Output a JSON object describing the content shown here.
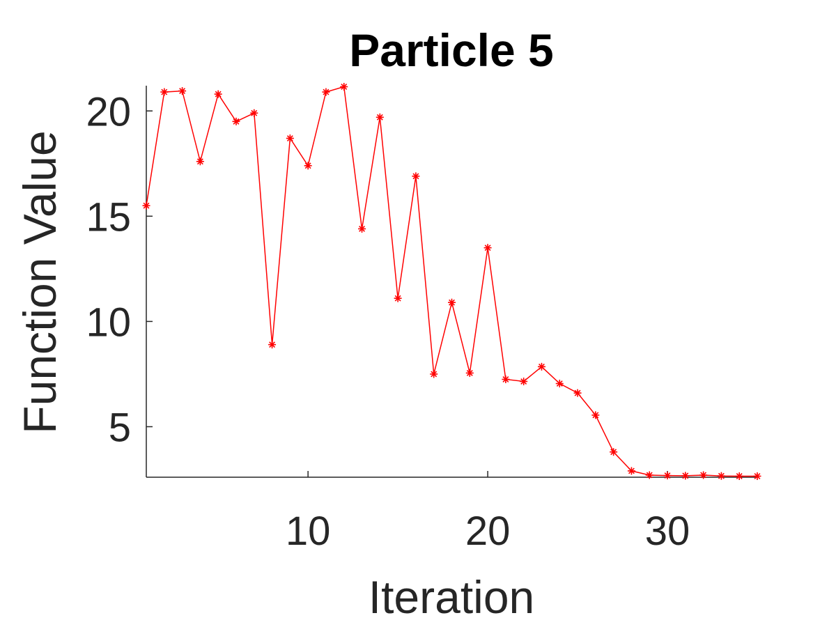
{
  "chart_data": {
    "type": "line",
    "title": "Particle 5",
    "xlabel": "Iteration",
    "ylabel": "Function Value",
    "xlim": [
      1,
      35
    ],
    "ylim": [
      2.6,
      21.2
    ],
    "xticks": [
      10,
      20,
      30
    ],
    "yticks": [
      5,
      10,
      15,
      20
    ],
    "grid": false,
    "series": [
      {
        "color": "#ff0000",
        "marker": "asterisk",
        "x": [
          1,
          2,
          3,
          4,
          5,
          6,
          7,
          8,
          9,
          10,
          11,
          12,
          13,
          14,
          15,
          16,
          17,
          18,
          19,
          20,
          21,
          22,
          23,
          24,
          25,
          26,
          27,
          28,
          29,
          30,
          31,
          32,
          33,
          34,
          35
        ],
        "y": [
          15.5,
          20.9,
          20.95,
          17.6,
          20.8,
          19.5,
          19.9,
          8.9,
          18.7,
          17.4,
          20.9,
          21.15,
          14.4,
          19.7,
          11.1,
          16.9,
          7.5,
          10.9,
          7.55,
          13.5,
          7.25,
          7.15,
          7.85,
          7.05,
          6.6,
          5.55,
          3.8,
          2.9,
          2.7,
          2.68,
          2.67,
          2.7,
          2.66,
          2.65,
          2.65
        ]
      }
    ]
  }
}
